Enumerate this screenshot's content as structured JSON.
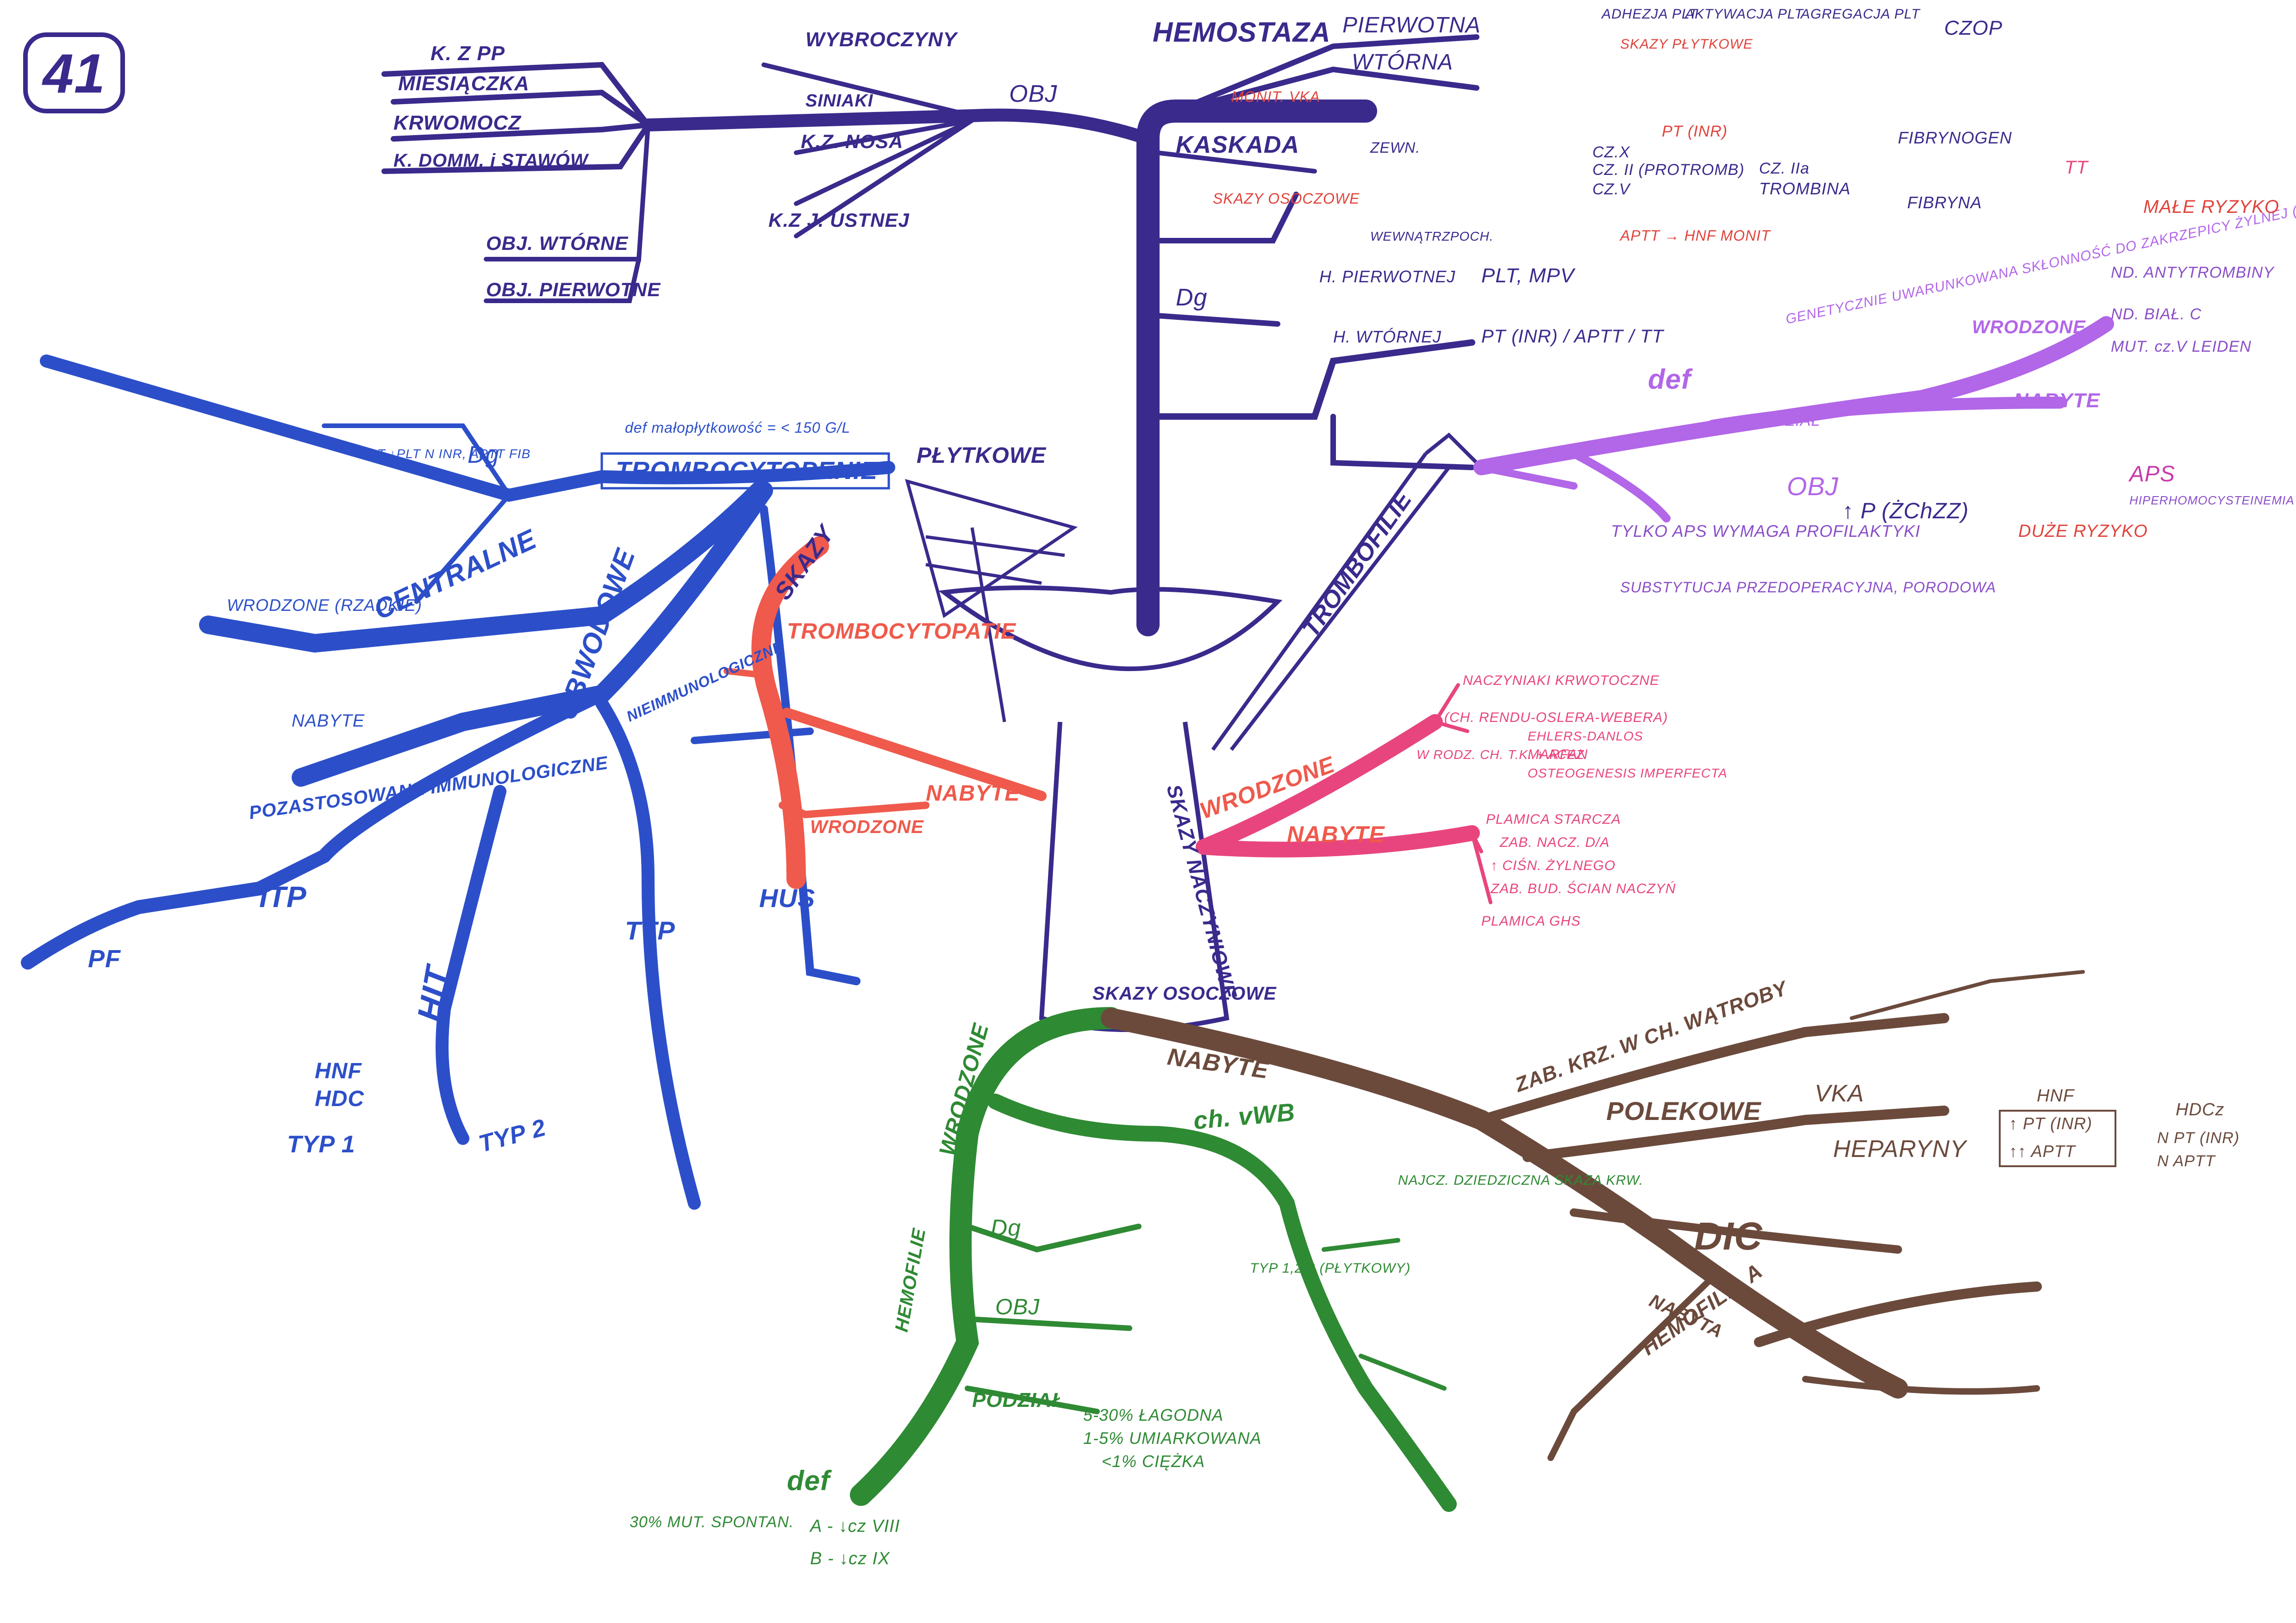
{
  "page_number": "41",
  "colors": {
    "purple": "#3a2a8c",
    "blue": "#2c4fc9",
    "red": "#ef5a4c",
    "pink": "#e8457e",
    "violet": "#b266e8",
    "magenta": "#c93aa8",
    "green": "#2f8a34",
    "brown": "#6b4a3c"
  },
  "hemostasis": {
    "title": "HEMOSTAZA",
    "primary": "PIERWOTNA",
    "secondary": "WTÓRNA",
    "kaskada": "KASKADA",
    "dg": "Dg",
    "dg_primary": "H. PIERWOTNEJ",
    "dg_primary_tests": "PLT, MPV",
    "dg_secondary": "H. WTÓRNEJ",
    "dg_secondary_tests": "PT (INR) / APTT / TT",
    "flow_clot": "CZOP",
    "flow_items": [
      "ADHEZJA PLT",
      "AKTYWACJA PLT",
      "AGREGACJA PLT"
    ],
    "skazy_plytkowe": "SKAZY PŁYTKOWE",
    "skazy_osoczowe": "SKAZY OSOCZOWE",
    "zewn": "ZEWN.",
    "wewn": "WEWNĄTRZPOCH.",
    "monit_vka": "MONIT. VKA",
    "pt_inr": "PT (INR)",
    "aptt_hnf": "APTT → HNF MONIT",
    "trombina": "TROMBINA",
    "fibrynogen": "FIBRYNOGEN",
    "fibryna": "FIBRYNA",
    "tt": "TT",
    "cz_x": "CZ.X",
    "cz_ii": "CZ. II (PROTROMB)",
    "cz_v": "CZ.V",
    "cz_iia": "CZ. IIa"
  },
  "vascular": {
    "hhp": "K. Z PP",
    "menstrual": "MIESIĄCZKA",
    "urine": "KRWOMOCZ",
    "gum_joint": "K. DOMM. i STAWÓW",
    "bruises": "WYBROCZYNY",
    "ecchymoses": "SINIAKI",
    "nose": "K.Z. NOSA",
    "mouth": "K.Z J. USTNEJ",
    "secondary": "OBJ. WTÓRNE",
    "primary": "OBJ. PIERWOTNE",
    "os": "OBJ"
  },
  "thrombocytopenia": {
    "title": "TROMBOCYTOPENIE",
    "def": "def małopłytkowość = < 150 G/L",
    "central": "CENTRALNE",
    "peripheral": "OBWODOWE",
    "congenital": "WRODZONE (RZADKIE)",
    "acquired": "NABYTE",
    "immune": "POZASTOSOWANE IMMUNOLOGICZNE",
    "non_immune": "NIEIMMUNOLOGICZNE",
    "dg": "Dg",
    "labs": "↑BT ↓PLT N INR, APTT FIB",
    "itp": "ITP",
    "hit": "HIT",
    "ttp": "TTP",
    "hus": "HUS",
    "pf": "PF",
    "type1": "TYP 1",
    "type2": "TYP 2",
    "hnf": "HNF",
    "hdc": "HDC"
  },
  "platelet": {
    "title": "PŁYTKOWE",
    "skazy": "SKAZY",
    "trombocytopatie": "TROMBOCYTOPATIE",
    "congenital": "WRODZONE",
    "acquired": "NABYTE"
  },
  "thrombophilia": {
    "title": "TROMBOFILIE",
    "def": "def",
    "def_text": "GENETYCZNIE UWARUNKOWANA SKŁONNOŚĆ DO ZAKRZEPICY ŻYLNEJ (RZADKO TĘTNICZEJ)",
    "division": "PODZIAŁ",
    "congenital": "WRODZONE",
    "acquired": "NABYTE",
    "os": "OBJ",
    "p_ch": "↑ P (ŻChZZ)",
    "aps": "APS",
    "aps_note": "TYLKO APS WYMAGA PROFILAKTYKI",
    "low_risk": "MAŁE RYZYKO",
    "high_risk": "DUŻE RYZYKO",
    "antithrombin": "ND. ANTYTROMBINY",
    "protein_c": "ND. BIAŁ. C",
    "factor_v": "MUT. cz.V LEIDEN",
    "hyperhomocysteinemia": "HIPERHOMOCYSTEINEMIA",
    "substitution": "SUBSTYTUCJA PRZEDOPERACYJNA, PORODOWA"
  },
  "vascular_defects": {
    "title": "SKAZY NACZYNIOWE",
    "congenital": "WRODZONE",
    "acquired": "NABYTE",
    "items_c": [
      "NACZYNIAKI KRWOTOCZNE",
      "(CH. RENDU-OSLERA-WEBERA)",
      "W RODZ. CH. T.K. + ACEZ",
      "EHLERS-DANLOS",
      "MARFAN",
      "OSTEOGENESIS IMPERFECTA"
    ],
    "items_a": [
      "PLAMICA STARCZA",
      "ZAB. NACZ. D/A",
      "↑ CIŚN. ŻYLNEGO",
      "ZAB. BUD. ŚCIAN NACZYŃ",
      "PLAMICA GHS"
    ]
  },
  "plasma": {
    "title": "SKAZY OSOCZOWE",
    "congenital": "WRODZONE",
    "acquired": "NABYTE",
    "hemophilia": "HEMOFILIE",
    "vwd": "ch. vWB",
    "dg": "Dg",
    "os": "OBJ",
    "division": "PODZIAŁ",
    "def": "def",
    "def_a": "A - ↓cz VIII",
    "def_b": "B - ↓cz IX",
    "def_pct": "30% MUT. SPONTAN.",
    "severity": [
      "5-30% ŁAGODNA",
      "1-5% UMIARKOWANA",
      "<1% CIĘŻKA"
    ],
    "vwd_types": "TYP 1,2,3 (PŁYTKOWY)",
    "vwd_def": "NAJCZ. DZIEDZICZNA SKAZA KRW.",
    "liver": "ZAB. KRZ. W CH. WĄTROBY",
    "drugs": "POLEKOWE",
    "vka": "VKA",
    "heparins": "HEPARYNY",
    "dic": "DIC",
    "acquired_hemophilia": "HEMOFILIA A",
    "acq_hemo_label": "NABYTA",
    "hnf_head": "HNF",
    "hdc_head": "HDCz",
    "hnf_rows": [
      "↑ PT (INR)",
      "↑↑ APTT"
    ],
    "hdc_rows": [
      "N PT (INR)",
      "N APTT"
    ]
  }
}
